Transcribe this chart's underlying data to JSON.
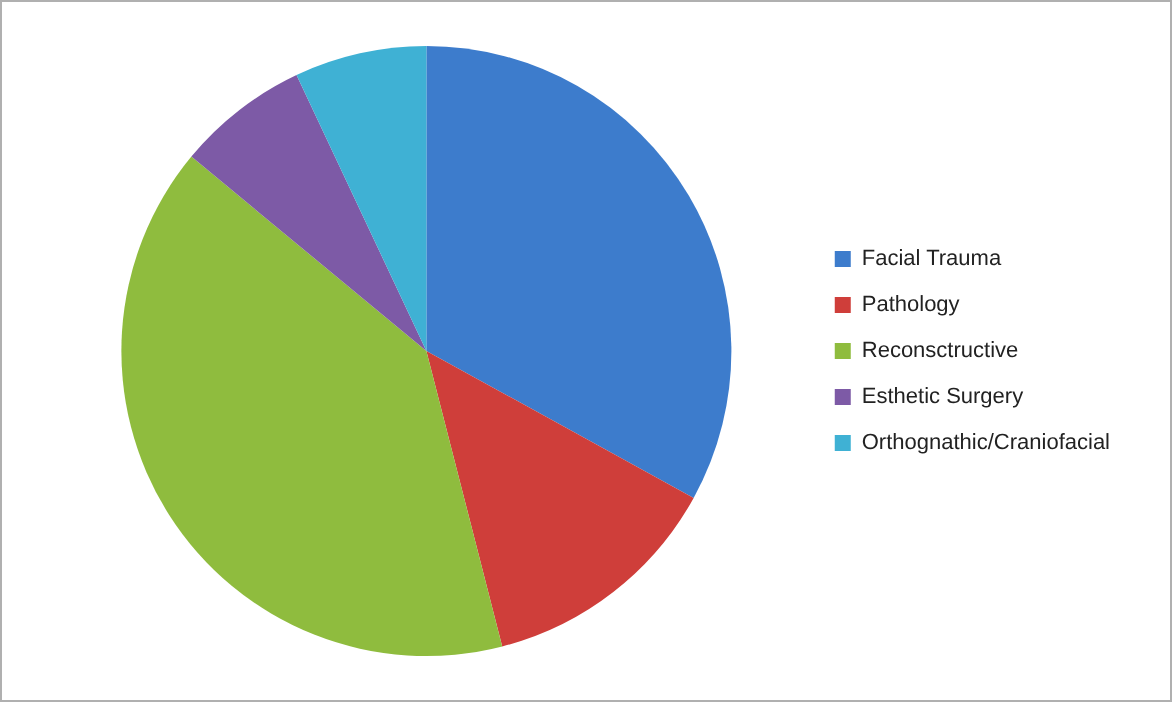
{
  "chart_data": {
    "type": "pie",
    "categories": [
      "Facial Trauma",
      "Pathology",
      "Reconsctructive",
      "Esthetic Surgery",
      "Orthognathic/Craniofacial"
    ],
    "values": [
      33,
      13,
      40,
      7,
      7
    ],
    "colors": [
      "#3d7ccc",
      "#cf3e3a",
      "#8fbc3e",
      "#7d5aa6",
      "#3fb1d4"
    ],
    "legend": "right"
  }
}
